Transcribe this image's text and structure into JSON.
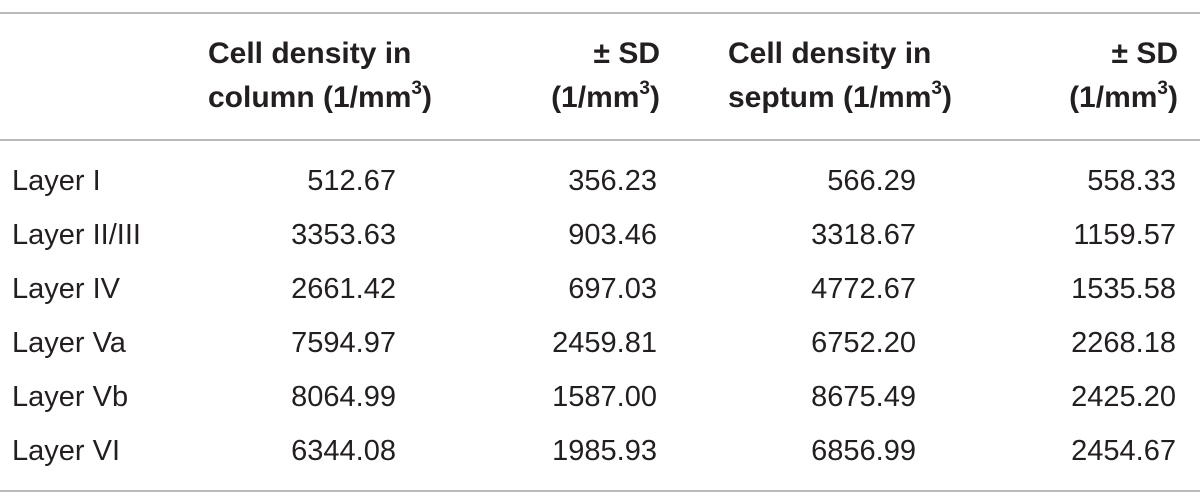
{
  "table": {
    "headers": {
      "col1": {
        "line1": "Cell density in",
        "line2": "column (1/mm",
        "sup": "3",
        "close": ")"
      },
      "col2": {
        "line1": "± SD",
        "line2": "(1/mm",
        "sup": "3",
        "close": ")"
      },
      "col3": {
        "line1": "Cell density in",
        "line2": "septum (1/mm",
        "sup": "3",
        "close": ")"
      },
      "col4": {
        "line1": "± SD",
        "line2": "(1/mm",
        "sup": "3",
        "close": ")"
      }
    },
    "rows": [
      {
        "label": "Layer I",
        "col_density": "512.67",
        "col_sd": "356.23",
        "sep_density": "566.29",
        "sep_sd": "558.33"
      },
      {
        "label": "Layer II/III",
        "col_density": "3353.63",
        "col_sd": "903.46",
        "sep_density": "3318.67",
        "sep_sd": "1159.57"
      },
      {
        "label": "Layer IV",
        "col_density": "2661.42",
        "col_sd": "697.03",
        "sep_density": "4772.67",
        "sep_sd": "1535.58"
      },
      {
        "label": "Layer Va",
        "col_density": "7594.97",
        "col_sd": "2459.81",
        "sep_density": "6752.20",
        "sep_sd": "2268.18"
      },
      {
        "label": "Layer Vb",
        "col_density": "8064.99",
        "col_sd": "1587.00",
        "sep_density": "8675.49",
        "sep_sd": "2425.20"
      },
      {
        "label": "Layer VI",
        "col_density": "6344.08",
        "col_sd": "1985.93",
        "sep_density": "6856.99",
        "sep_sd": "2454.67"
      }
    ]
  }
}
